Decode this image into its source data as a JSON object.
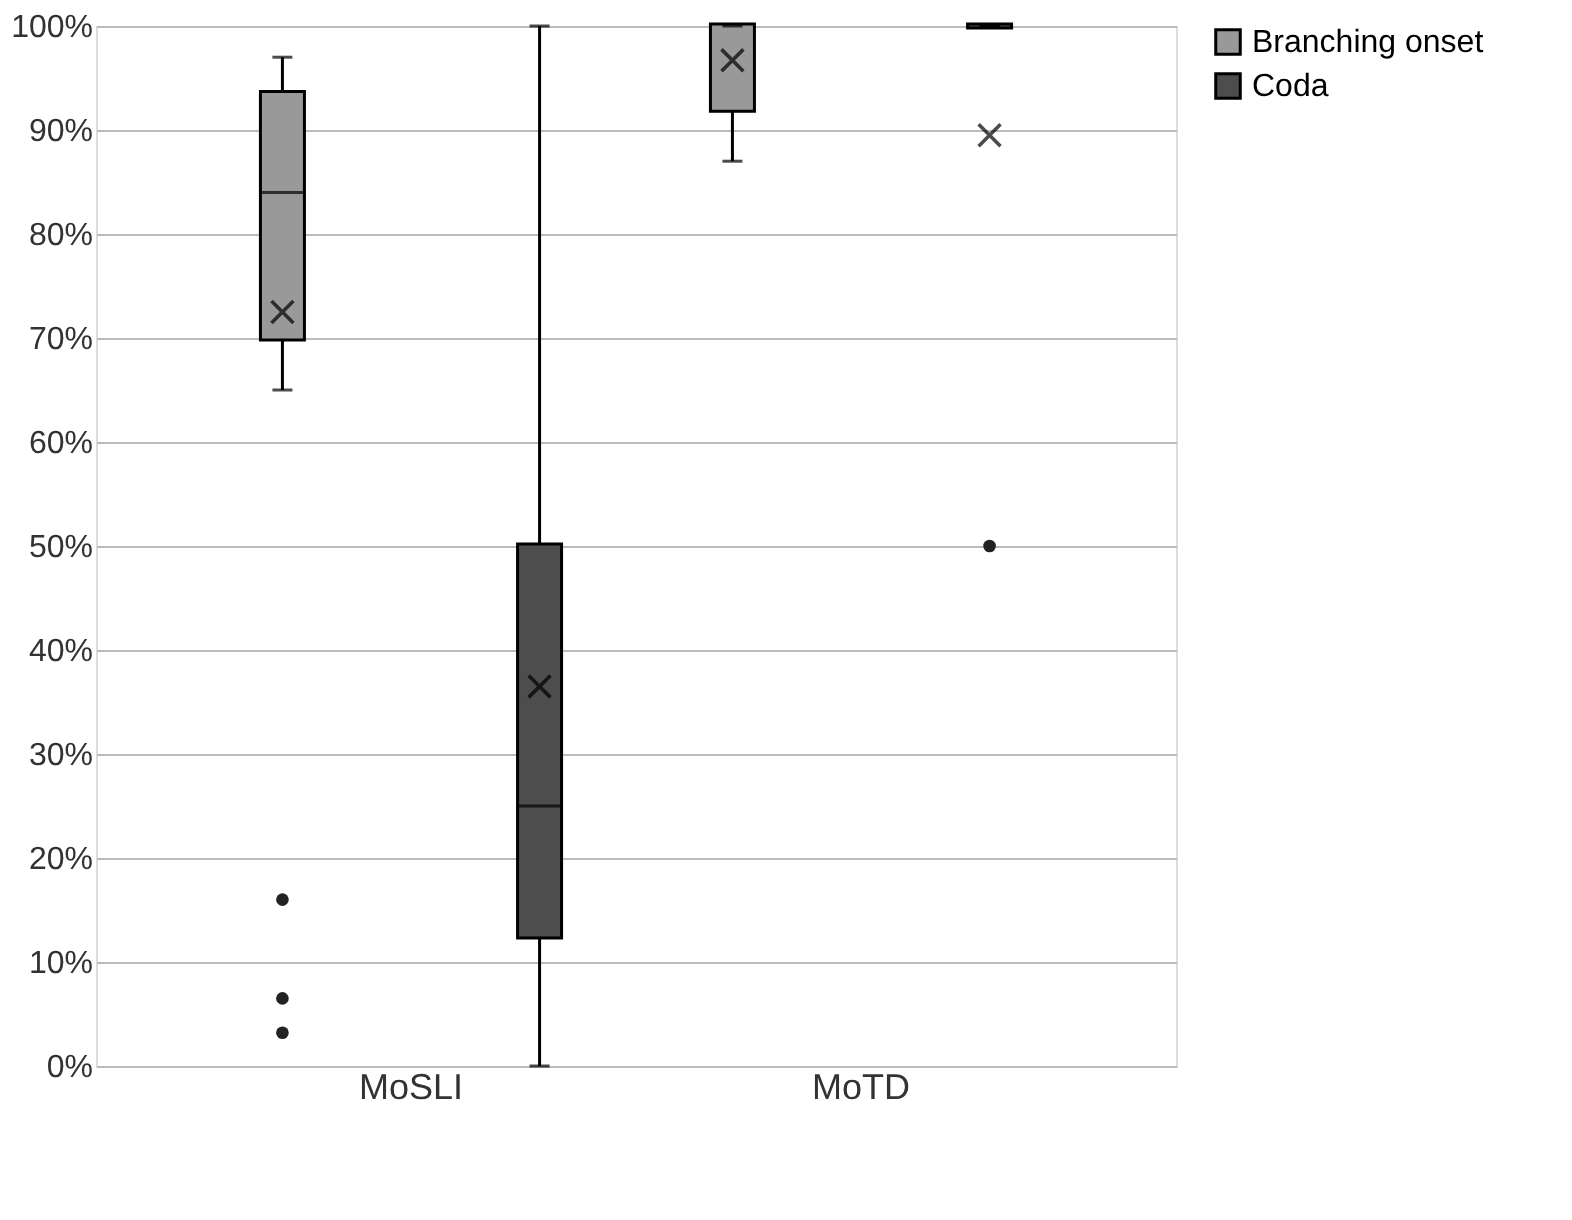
{
  "chart_data": {
    "type": "box",
    "categories": [
      "MoSLI",
      "MoTD"
    ],
    "series": [
      {
        "name": "Branching onset",
        "color": "#999999",
        "boxes": [
          {
            "low": 65,
            "q1": 70,
            "median": 84,
            "q3": 93.5,
            "high": 97,
            "mean": 72.5,
            "outliers": [
              16,
              6.5,
              3.2
            ]
          },
          {
            "low": 87,
            "q1": 92,
            "median": 100,
            "q3": 100,
            "high": 100,
            "mean": 96.7
          }
        ]
      },
      {
        "name": "Coda",
        "color": "#4d4d4d",
        "boxes": [
          {
            "low": 0,
            "q1": 12.5,
            "median": 25,
            "q3": 50,
            "high": 100,
            "mean": 36.5
          },
          {
            "low": 100,
            "q1": 100,
            "median": 100,
            "q3": 100,
            "high": 100,
            "mean": 89.5,
            "outliers": [
              50
            ]
          }
        ]
      }
    ],
    "ylim": [
      0,
      100
    ],
    "yticks": [
      {
        "value": 0,
        "label": "0%"
      },
      {
        "value": 10,
        "label": "10%"
      },
      {
        "value": 20,
        "label": "20%"
      },
      {
        "value": 30,
        "label": "30%"
      },
      {
        "value": 40,
        "label": "40%"
      },
      {
        "value": 50,
        "label": "50%"
      },
      {
        "value": 60,
        "label": "60%"
      },
      {
        "value": 70,
        "label": "70%"
      },
      {
        "value": 80,
        "label": "80%"
      },
      {
        "value": 90,
        "label": "90%"
      },
      {
        "value": 100,
        "label": "100%"
      }
    ],
    "grid": "y",
    "legend": "right",
    "marker": "cross"
  }
}
